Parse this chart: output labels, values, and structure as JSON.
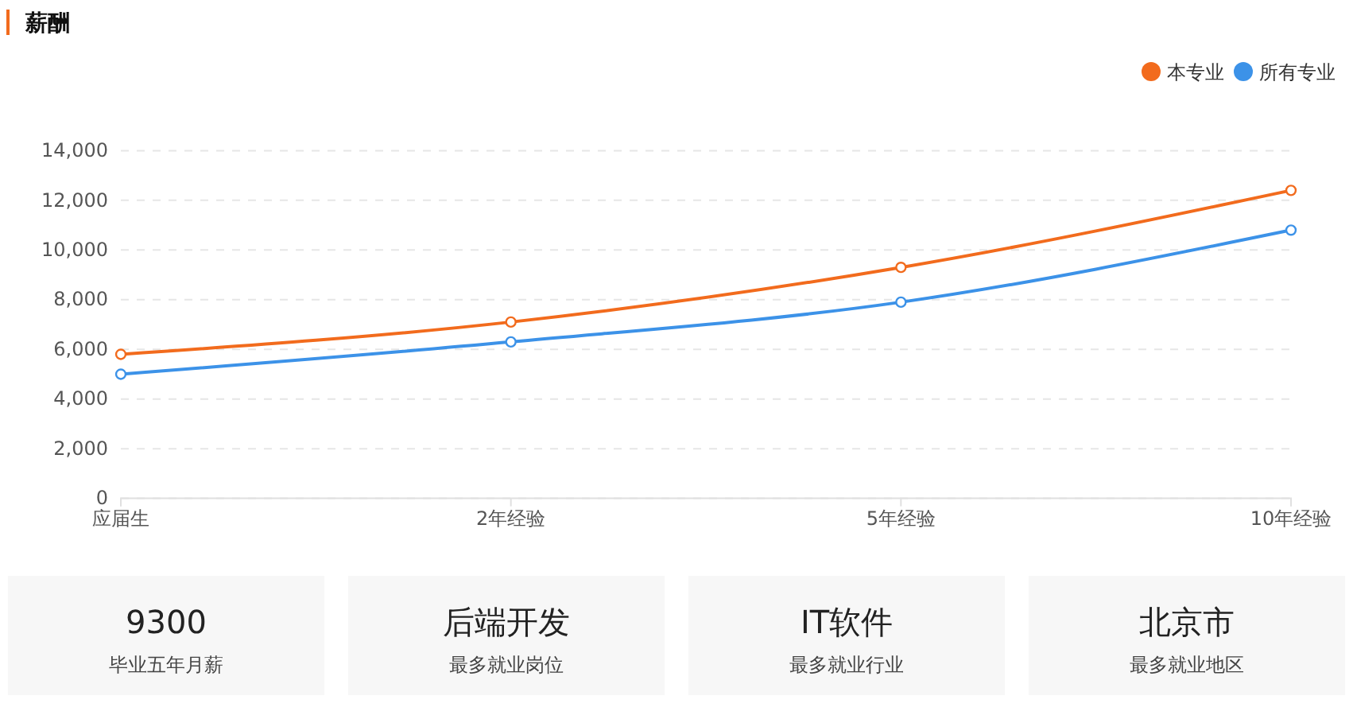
{
  "chart_data": [
    {
      "type": "line",
      "title": "薪酬",
      "categories": [
        "应届生",
        "2年经验",
        "5年经验",
        "10年经验"
      ],
      "series": [
        {
          "name": "本专业",
          "color": "#f26b1d",
          "values": [
            5800,
            7100,
            9300,
            12400
          ]
        },
        {
          "name": "所有专业",
          "color": "#3c92e8",
          "values": [
            5000,
            6300,
            7900,
            10800
          ]
        }
      ],
      "ylim": [
        0,
        14000
      ],
      "yticks": [
        {
          "value": 0,
          "label": "0"
        },
        {
          "value": 2000,
          "label": "2,000"
        },
        {
          "value": 4000,
          "label": "4,000"
        },
        {
          "value": 6000,
          "label": "6,000"
        },
        {
          "value": 8000,
          "label": "8,000"
        },
        {
          "value": 10000,
          "label": "10,000"
        },
        {
          "value": 12000,
          "label": "12,000"
        },
        {
          "value": 14000,
          "label": "14,000"
        }
      ],
      "grid": "y",
      "legend": "top right",
      "marker": "circle",
      "line_style": "solid"
    },
    {
      "type": "other",
      "annotations": [
        "9300",
        "毕业五年月薪",
        "后端开发",
        "最多就业岗位",
        "IT软件",
        "最多就业行业",
        "北京市",
        "最多就业地区"
      ]
    }
  ]
}
